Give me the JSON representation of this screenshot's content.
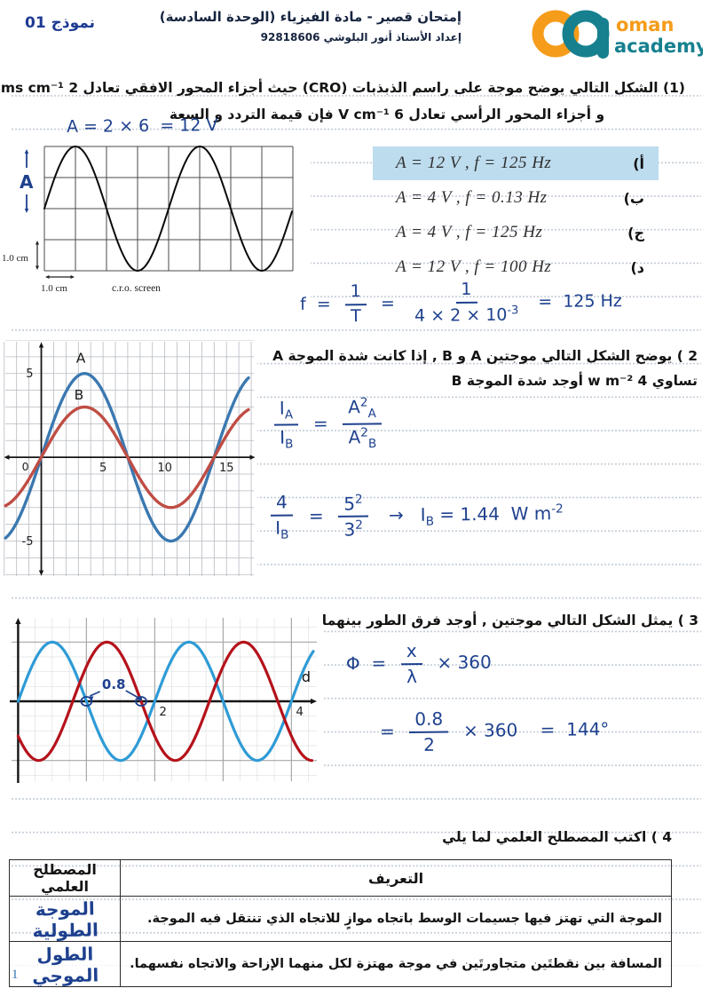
{
  "header": {
    "model": "نموذج 01",
    "title": "إمتحان قصير - مادة الفيزياء (الوحدة السادسة)",
    "subtitle": "إعداد الأستاذ أنور البلوشي   92818606",
    "logo": {
      "word1": "oman",
      "word2": "academy"
    }
  },
  "colors": {
    "accent_blue": "#1f3a93",
    "handwriting": "#1e418e",
    "highlight": "#bddcee",
    "wave_a": "#3b78b0",
    "wave_b": "#bf4d44",
    "phase_blue": "#2e9bd6",
    "phase_red": "#b5121b",
    "logo_orange": "#f59c1a",
    "logo_teal": "#16808f"
  },
  "q1": {
    "line1": "(1) الشكل التالي يوضح موجة على راسم الذبذبات (CRO) حيث  أجزاء المحور الافقي تعادل 2 ms cm⁻¹",
    "line2": "و أجزاء المحور الرأسي تعادل 6 V cm⁻¹  فإن قيمة التردد و السعة",
    "hw_amplitude": "A = 2 × 6  = 12 V",
    "options": [
      {
        "letter": "أ)",
        "formula": "A = 12 V , f = 125 Hz",
        "highlighted": true
      },
      {
        "letter": "ب)",
        "formula": "A = 4 V , f = 0.13 Hz",
        "highlighted": false
      },
      {
        "letter": "ج)",
        "formula": "A = 4 V , f = 125 Hz",
        "highlighted": false
      },
      {
        "letter": "د)",
        "formula": "A = 12 V , f = 100 Hz",
        "highlighted": false
      }
    ],
    "work": [
      {
        "t": "text",
        "v": "f  =  "
      },
      {
        "t": "frac",
        "num": [
          {
            "t": "text",
            "v": "1"
          }
        ],
        "den": [
          {
            "t": "text",
            "v": "T"
          }
        ]
      },
      {
        "t": "text",
        "v": "  =  "
      },
      {
        "t": "frac",
        "num": [
          {
            "t": "text",
            "v": "1"
          }
        ],
        "den": [
          {
            "t": "text",
            "v": "4 × 2 × 10"
          },
          {
            "t": "sup",
            "v": "-3"
          }
        ]
      },
      {
        "t": "text",
        "v": "  =  125 Hz"
      }
    ]
  },
  "q2": {
    "line1": "2 ) يوضح الشكل التالي موجتين A و B , إذا كانت شدة الموجة A",
    "line2": "تساوي 4 w m⁻² أوجد شدة الموجة B",
    "work1": [
      {
        "t": "frac",
        "num": [
          {
            "t": "text",
            "v": "I"
          },
          {
            "t": "sub",
            "v": "A"
          }
        ],
        "den": [
          {
            "t": "text",
            "v": "I"
          },
          {
            "t": "sub",
            "v": "B"
          }
        ]
      },
      {
        "t": "text",
        "v": "  =  "
      },
      {
        "t": "frac",
        "num": [
          {
            "t": "text",
            "v": "A"
          },
          {
            "t": "sup",
            "v": "2"
          },
          {
            "t": "sub",
            "v": "A"
          }
        ],
        "den": [
          {
            "t": "text",
            "v": "A"
          },
          {
            "t": "sup",
            "v": "2"
          },
          {
            "t": "sub",
            "v": "B"
          }
        ]
      }
    ],
    "work2": [
      {
        "t": "frac",
        "num": [
          {
            "t": "text",
            "v": "4"
          }
        ],
        "den": [
          {
            "t": "text",
            "v": "I"
          },
          {
            "t": "sub",
            "v": "B"
          }
        ]
      },
      {
        "t": "text",
        "v": "  =  "
      },
      {
        "t": "frac",
        "num": [
          {
            "t": "text",
            "v": "5"
          },
          {
            "t": "sup",
            "v": "2"
          }
        ],
        "den": [
          {
            "t": "text",
            "v": "3"
          },
          {
            "t": "sup",
            "v": "2"
          }
        ]
      },
      {
        "t": "text",
        "v": "   →   I"
      },
      {
        "t": "sub",
        "v": "B"
      },
      {
        "t": "text",
        "v": " = 1.44  W m"
      },
      {
        "t": "sup",
        "v": "-2"
      }
    ]
  },
  "q3": {
    "line1": "3 ) يمثل الشكل التالي موجتين , أوجد فرق الطور بينهما",
    "work1": [
      {
        "t": "text",
        "v": "Φ  =  "
      },
      {
        "t": "frac",
        "num": [
          {
            "t": "text",
            "v": "x"
          }
        ],
        "den": [
          {
            "t": "text",
            "v": "λ"
          }
        ]
      },
      {
        "t": "text",
        "v": "  × 360"
      }
    ],
    "work2": [
      {
        "t": "text",
        "v": "=  "
      },
      {
        "t": "frac",
        "num": [
          {
            "t": "text",
            "v": "0.8"
          }
        ],
        "den": [
          {
            "t": "text",
            "v": "2"
          }
        ]
      },
      {
        "t": "text",
        "v": "  × 360    =  144°"
      }
    ]
  },
  "q4": {
    "title": "4 ) اكتب المصطلح العلمي لما يلي",
    "table": {
      "header": {
        "definition": "التعريف",
        "term": "المصطلح العلمي"
      },
      "rows": [
        {
          "definition": "الموجة التي تهتز فيها جسيمات الوسط باتجاه موازٍ للاتجاه الذي تنتقل فيه الموجة.",
          "term": "الموجة الطولية"
        },
        {
          "definition": "المسافة بين نقطتَين متجاورتَين في موجة مهتزة لكل منهما الإزاحة والاتجاه نفسهما.",
          "term": "الطول الموجي"
        }
      ]
    }
  },
  "page_number": "1",
  "chart_data": [
    {
      "id": "cro-screen",
      "type": "line",
      "title": "c.r.o. screen",
      "grid": {
        "cols": 8,
        "rows": 4,
        "cell_cm": 1.0
      },
      "wave": {
        "amplitude_cm": 2,
        "period_cm": 4,
        "shape": "sine",
        "color": "#0a0a0a"
      },
      "labels": {
        "v_scale": "1.0 cm",
        "h_scale": "1.0 cm",
        "caption": "c.r.o.  screen",
        "hw_amplitude_mark": "A"
      },
      "readings": {
        "time_per_cm": "2 ms",
        "volts_per_cm": "6 V",
        "amplitude_V": 12,
        "frequency_Hz": 125
      }
    },
    {
      "id": "waves-ab",
      "type": "line",
      "x_range": [
        -3.2,
        17.5
      ],
      "y_range": [
        -7.2,
        7.0
      ],
      "grid_step": 1,
      "x_ticks": [
        5,
        10,
        15
      ],
      "y_ticks": [
        5,
        -5
      ],
      "origin_label": "0",
      "series": [
        {
          "name": "A",
          "amplitude": 5,
          "period": 14,
          "phase_shift": 0,
          "color": "#3b78b0",
          "x_start": -2.9,
          "x_end": 16.85,
          "label_pos": [
            3.2,
            5.65
          ]
        },
        {
          "name": "B",
          "amplitude": 3,
          "period": 14,
          "phase_shift": 0,
          "color": "#bf4d44",
          "x_start": -2.9,
          "x_end": 16.85,
          "label_pos": [
            3.05,
            3.45
          ]
        }
      ]
    },
    {
      "id": "phase-waves",
      "type": "line",
      "x_label": "d",
      "x_range": [
        -0.2,
        4.45
      ],
      "y_range": [
        -1.41,
        1.47
      ],
      "minor_step": 0.25,
      "major_xs": [
        1,
        2,
        3,
        4
      ],
      "major_ys": [
        -1,
        1
      ],
      "x_ticks": [
        2,
        4
      ],
      "series": [
        {
          "name": "wave-1",
          "amplitude": 1,
          "period": 2,
          "phase_shift": 0,
          "color": "#2e9bd6",
          "x_start": 0,
          "x_end": 4.33
        },
        {
          "name": "wave-2",
          "amplitude": 1,
          "period": 2,
          "phase_shift": 0.8,
          "color": "#b5121b",
          "x_start": 0,
          "x_end": 4.3
        }
      ],
      "annotation": {
        "text": "0.8",
        "points_x": [
          1.0,
          1.8
        ],
        "meaning": "path difference between waves"
      }
    }
  ]
}
